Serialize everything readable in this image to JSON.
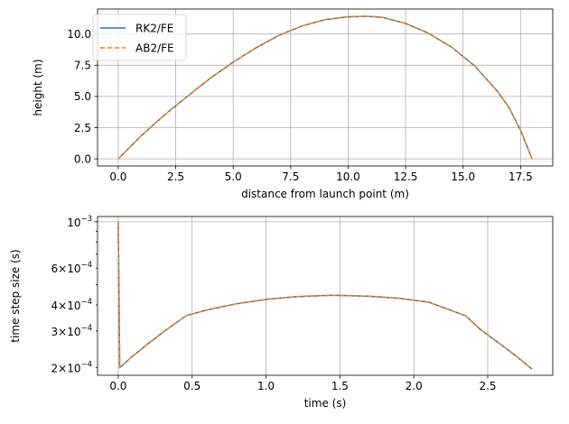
{
  "chart_data": [
    {
      "type": "line",
      "title": "",
      "xlabel": "distance from launch point (m)",
      "ylabel": "height (m)",
      "xlim": [
        -0.9,
        18.9
      ],
      "ylim": [
        -0.57,
        12.0
      ],
      "xticks": [
        0.0,
        2.5,
        5.0,
        7.5,
        10.0,
        12.5,
        15.0,
        17.5
      ],
      "xtick_labels": [
        "0.0",
        "2.5",
        "5.0",
        "7.5",
        "10.0",
        "12.5",
        "15.0",
        "17.5"
      ],
      "yticks": [
        0.0,
        2.5,
        5.0,
        7.5,
        10.0
      ],
      "ytick_labels": [
        "0.0",
        "2.5",
        "5.0",
        "7.5",
        "10.0"
      ],
      "grid": true,
      "legend": "top-left",
      "colors": {
        "RK2/FE": "#1f77b4",
        "AB2/FE": "#ff7f0e"
      },
      "series": [
        {
          "name": "RK2/FE",
          "style": "solid",
          "x": [
            0.0,
            1.0,
            2.0,
            3.0,
            4.0,
            5.0,
            6.0,
            7.0,
            8.0,
            9.0,
            10.0,
            10.8,
            11.5,
            12.5,
            13.5,
            14.5,
            15.5,
            16.5,
            17.0,
            17.5,
            18.0
          ],
          "y": [
            0.0,
            1.85,
            3.5,
            5.0,
            6.45,
            7.75,
            8.9,
            9.9,
            10.65,
            11.15,
            11.38,
            11.42,
            11.33,
            10.85,
            10.05,
            8.95,
            7.45,
            5.4,
            4.1,
            2.3,
            0.0
          ]
        },
        {
          "name": "AB2/FE",
          "style": "dashed",
          "x": [
            0.0,
            1.0,
            2.0,
            3.0,
            4.0,
            5.0,
            6.0,
            7.0,
            8.0,
            9.0,
            10.0,
            10.8,
            11.5,
            12.5,
            13.5,
            14.5,
            15.5,
            16.5,
            17.0,
            17.5,
            18.0
          ],
          "y": [
            0.0,
            1.85,
            3.5,
            5.0,
            6.45,
            7.75,
            8.9,
            9.9,
            10.65,
            11.15,
            11.38,
            11.42,
            11.33,
            10.85,
            10.05,
            8.95,
            7.45,
            5.4,
            4.1,
            2.3,
            0.0
          ]
        }
      ]
    },
    {
      "type": "line",
      "title": "",
      "xlabel": "time (s)",
      "ylabel": "time step size (s)",
      "xscale": "linear",
      "yscale": "log",
      "xlim": [
        -0.14,
        2.94
      ],
      "ylim": [
        0.000184,
        0.00106
      ],
      "xticks": [
        0.0,
        0.5,
        1.0,
        1.5,
        2.0,
        2.5
      ],
      "xtick_labels": [
        "0.0",
        "0.5",
        "1.0",
        "1.5",
        "2.0",
        "2.5"
      ],
      "yticks_major": [
        0.001
      ],
      "ytick_labels_major": [
        {
          "base": "10",
          "exp": "−3"
        }
      ],
      "yticks_minor": [
        0.0002,
        0.0003,
        0.0004,
        0.0006
      ],
      "ytick_labels_minor": [
        {
          "mant": "2×10",
          "exp": "−4"
        },
        {
          "mant": "3×10",
          "exp": "−4"
        },
        {
          "mant": "4×10",
          "exp": "−4"
        },
        {
          "mant": "6×10",
          "exp": "−4"
        }
      ],
      "grid": true,
      "series": [
        {
          "name": "RK2/FE",
          "style": "solid",
          "x": [
            0.0,
            0.01,
            0.1,
            0.2,
            0.3,
            0.46,
            0.6,
            0.8,
            1.0,
            1.2,
            1.45,
            1.7,
            1.9,
            2.1,
            2.35,
            2.45,
            2.6,
            2.7,
            2.8
          ],
          "y": [
            0.001,
            0.0002,
            0.000228,
            0.00026,
            0.000295,
            0.000355,
            0.000378,
            0.000405,
            0.000425,
            0.000438,
            0.000445,
            0.00044,
            0.00043,
            0.000412,
            0.000355,
            0.000305,
            0.000255,
            0.000225,
            0.000197
          ]
        },
        {
          "name": "AB2/FE",
          "style": "dashed",
          "x": [
            0.0,
            0.01,
            0.1,
            0.2,
            0.3,
            0.46,
            0.6,
            0.8,
            1.0,
            1.2,
            1.45,
            1.7,
            1.9,
            2.1,
            2.35,
            2.45,
            2.6,
            2.7,
            2.8
          ],
          "y": [
            0.001,
            0.0002,
            0.000228,
            0.00026,
            0.000295,
            0.000355,
            0.000378,
            0.000405,
            0.000425,
            0.000438,
            0.000445,
            0.00044,
            0.00043,
            0.000412,
            0.000355,
            0.000305,
            0.000255,
            0.000225,
            0.000197
          ]
        }
      ]
    }
  ]
}
